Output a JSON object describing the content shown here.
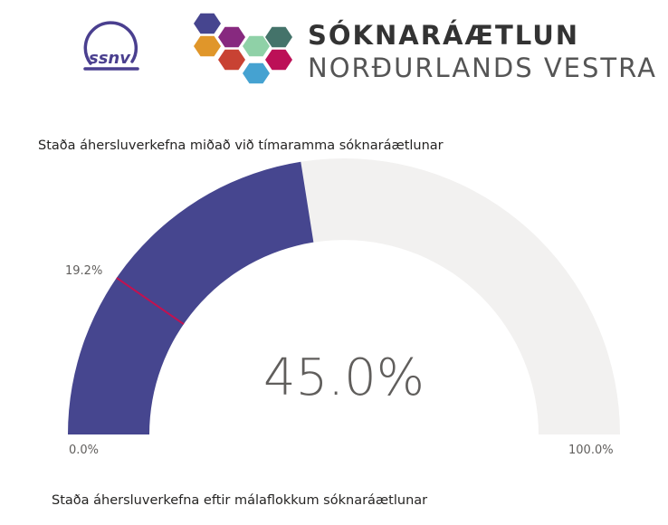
{
  "header": {
    "ssnv_logo_text": "ssnv",
    "brand_line1": "SÓKNARÁÆTLUN",
    "brand_line2": "NORÐURLANDS VESTRA",
    "hex_colors": [
      "#46458f",
      "#87297f",
      "#e0962a",
      "#c84233",
      "#8fd1a7",
      "#44736a",
      "#bc1057",
      "#45a2d1"
    ]
  },
  "gauge": {
    "title": "Staða áherslu­verkefna miðað við tímaramma sóknaráætlunar",
    "value": 45.0,
    "value_label": "45.0%",
    "min_label": "0.0%",
    "max_label": "100.0%",
    "target": 19.2,
    "target_label": "19.2%",
    "fill_color": "#46468f",
    "track_color": "#f2f1f0",
    "target_color": "#c4114f"
  },
  "next_section": {
    "title": "Staða áhersluverkefna eftir málaflokkum sóknaráætlunar"
  }
}
